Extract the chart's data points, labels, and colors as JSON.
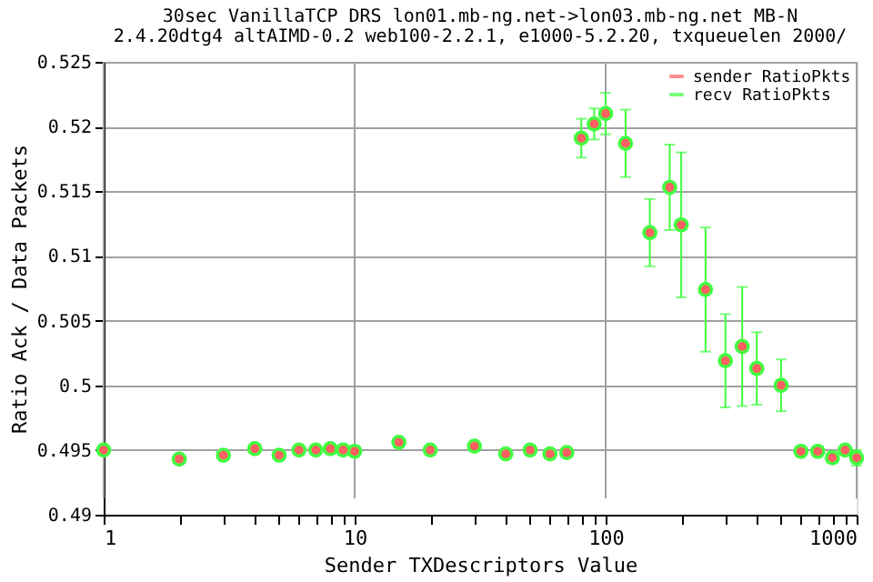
{
  "chart_data": {
    "type": "scatter",
    "title": "30sec VanillaTCP DRS lon01.mb-ng.net->lon03.mb-ng.net MB-N",
    "subtitle": "2.4.20dtg4 altAIMD-0.2 web100-2.2.1, e1000-5.2.20, txqueuelen 2000/",
    "xlabel": "Sender TXDescriptors Value",
    "ylabel": "Ratio Ack / Data Packets",
    "x": [
      1,
      2,
      3,
      4,
      5,
      6,
      7,
      8,
      9,
      10,
      15,
      20,
      30,
      40,
      50,
      60,
      70,
      80,
      90,
      100,
      120,
      150,
      180,
      200,
      250,
      300,
      350,
      400,
      500,
      600,
      700,
      800,
      900,
      1000
    ],
    "series": [
      {
        "name": "sender RatioPkts",
        "color": "#ff6060",
        "values": [
          0.495,
          0.4943,
          0.4946,
          0.4951,
          0.4946,
          0.495,
          0.495,
          0.4951,
          0.495,
          0.4949,
          0.4956,
          0.495,
          0.4953,
          0.4947,
          0.495,
          0.4947,
          0.4948,
          0.5191,
          0.5202,
          0.521,
          0.5187,
          0.5118,
          0.5153,
          0.5124,
          0.5074,
          0.5019,
          0.503,
          0.5013,
          0.5,
          0.4949,
          0.4949,
          0.4944,
          0.495,
          0.4944
        ]
      },
      {
        "name": "recv RatioPkts",
        "color": "#40ff40",
        "values": [
          0.495,
          0.4943,
          0.4946,
          0.4951,
          0.4946,
          0.495,
          0.495,
          0.4951,
          0.495,
          0.4949,
          0.4956,
          0.495,
          0.4953,
          0.4947,
          0.495,
          0.4947,
          0.4948,
          0.5191,
          0.5202,
          0.521,
          0.5187,
          0.5118,
          0.5153,
          0.5124,
          0.5074,
          0.5019,
          0.503,
          0.5013,
          0.5,
          0.4949,
          0.4949,
          0.4944,
          0.495,
          0.4944
        ],
        "errors": [
          0.0001,
          0.0002,
          0.0002,
          0.0001,
          0.0001,
          0.0002,
          0.0003,
          0.0001,
          0.0001,
          0.0001,
          0.0002,
          0.0001,
          0.0001,
          0.0002,
          0.0001,
          0.0001,
          0.0001,
          0.0015,
          0.0012,
          0.0016,
          0.0026,
          0.0026,
          0.0033,
          0.0056,
          0.0048,
          0.0036,
          0.0046,
          0.0028,
          0.002,
          0.0003,
          0.0002,
          0.0004,
          0.0001,
          0.0006
        ]
      }
    ],
    "log": "x",
    "xlim": [
      1,
      1000
    ],
    "xticks": [
      1,
      {
        "value": 2,
        "label": null
      },
      {
        "value": 3,
        "label": null
      },
      {
        "value": 4,
        "label": null
      },
      {
        "value": 5,
        "label": null
      },
      {
        "value": 6,
        "label": null
      },
      {
        "value": 7,
        "label": null
      },
      {
        "value": 8,
        "label": null
      },
      {
        "value": 9,
        "label": null
      },
      10,
      {
        "value": 20,
        "label": null
      },
      {
        "value": 30,
        "label": null
      },
      {
        "value": 40,
        "label": null
      },
      {
        "value": 50,
        "label": null
      },
      {
        "value": 60,
        "label": null
      },
      {
        "value": 70,
        "label": null
      },
      {
        "value": 80,
        "label": null
      },
      {
        "value": 90,
        "label": null
      },
      100,
      {
        "value": 200,
        "label": null
      },
      {
        "value": 300,
        "label": null
      },
      {
        "value": 400,
        "label": null
      },
      {
        "value": 500,
        "label": null
      },
      {
        "value": 600,
        "label": null
      },
      {
        "value": 700,
        "label": null
      },
      {
        "value": 800,
        "label": null
      },
      {
        "value": 900,
        "label": null
      },
      1000
    ],
    "ylim": [
      0.49,
      0.525
    ],
    "yticks": [
      0.49,
      0.495,
      0.5,
      0.505,
      0.51,
      0.515,
      0.52,
      0.525
    ],
    "grid": true,
    "legend": "top right",
    "marker": "circle"
  }
}
